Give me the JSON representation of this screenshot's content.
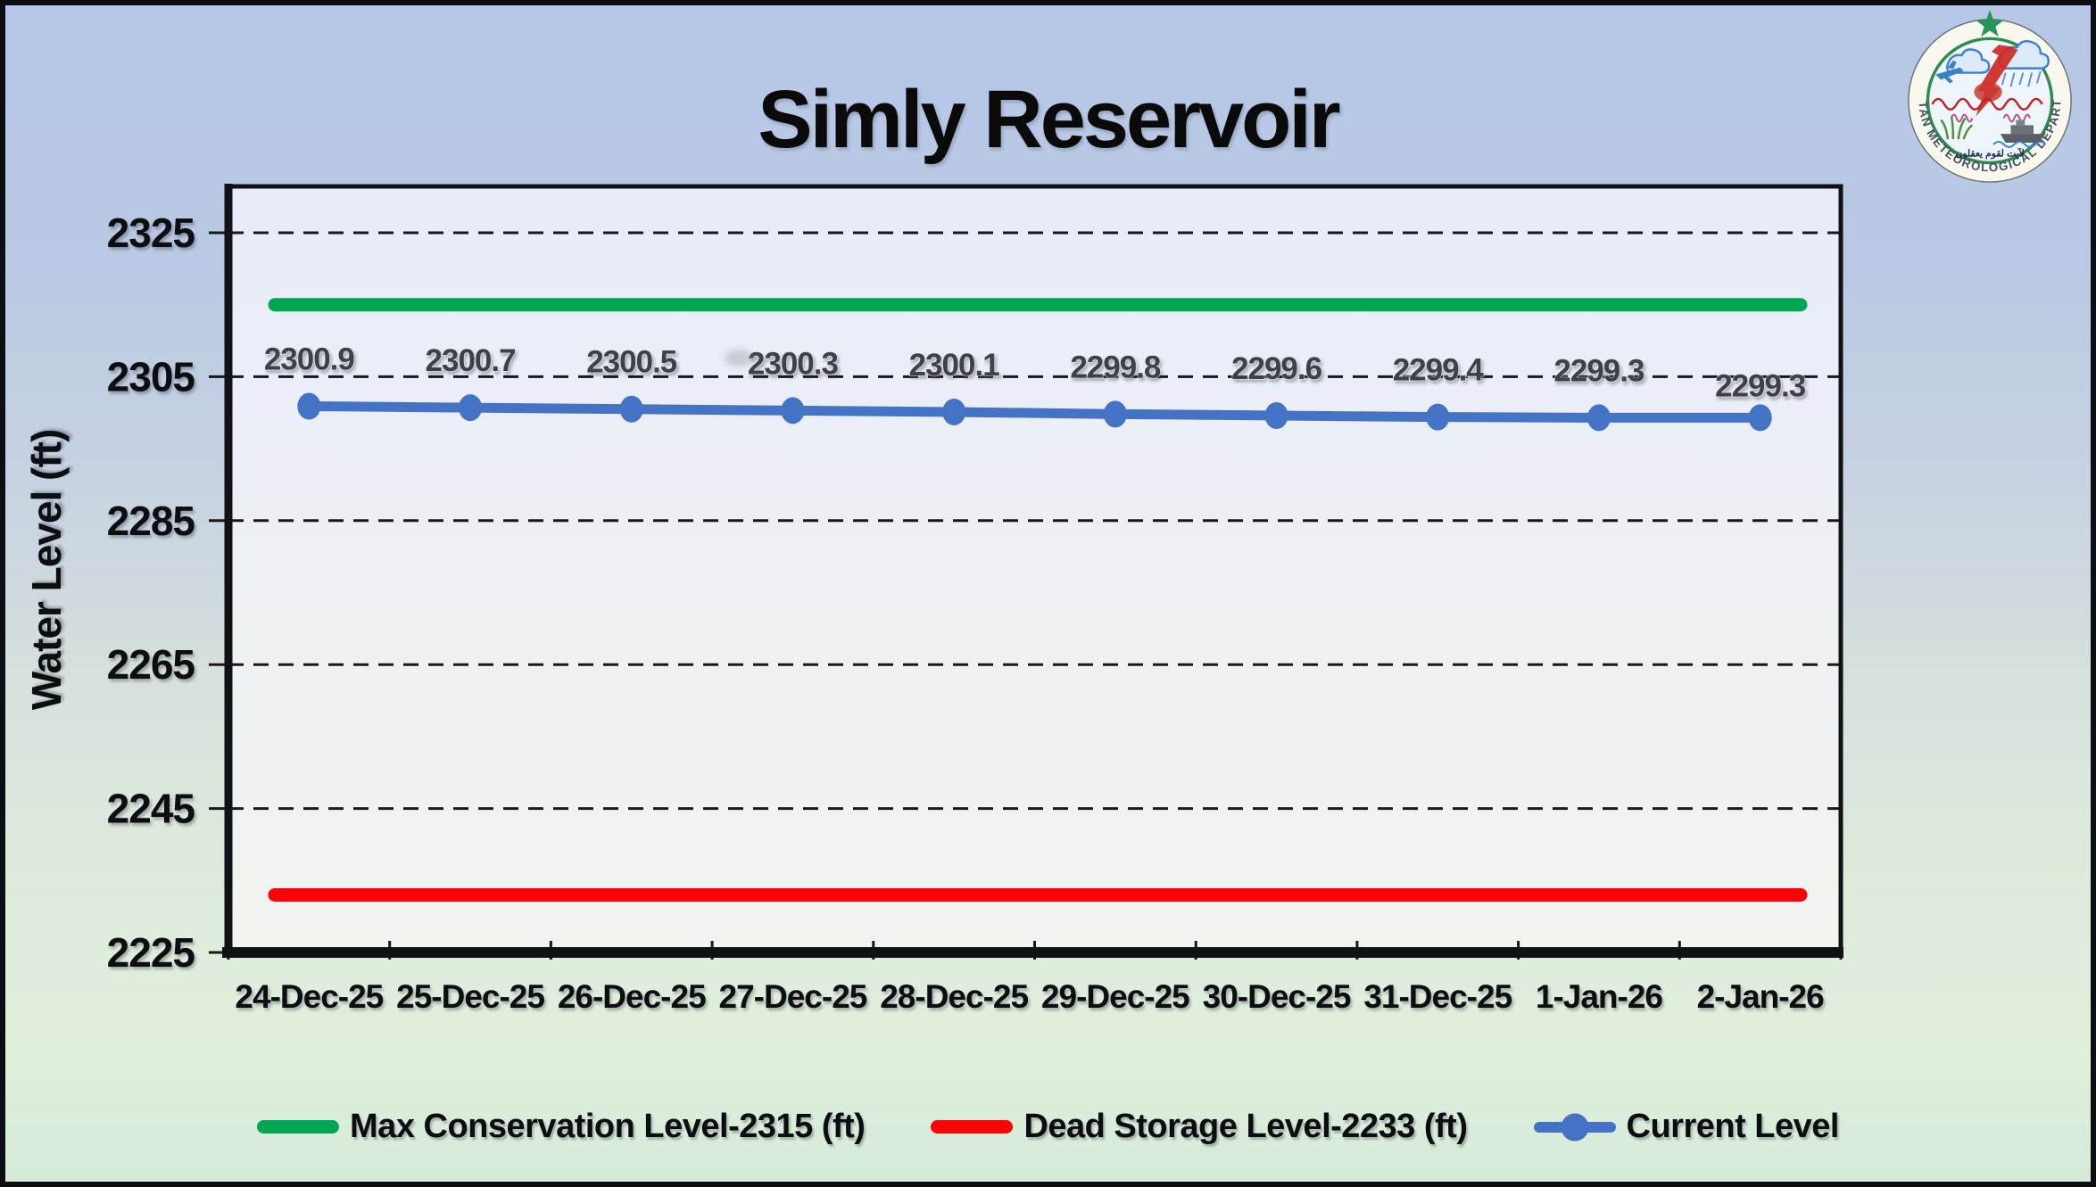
{
  "page": {
    "title": "Simly Reservoir"
  },
  "logo": {
    "name": "pakistan-meteorological-department-seal",
    "ring_text": "PAKISTAN METEOROLOGICAL DEPARTMENT",
    "center_text": "لآيت لقوم يعقلون",
    "star_color": "#23975a",
    "ring_color": "#2e8b4f",
    "text_color": "#44505e"
  },
  "chart_data": {
    "type": "line",
    "title": "Simly Reservoir",
    "xlabel": "",
    "ylabel": "Water Level (ft)",
    "categories": [
      "24-Dec-25",
      "25-Dec-25",
      "26-Dec-25",
      "27-Dec-25",
      "28-Dec-25",
      "29-Dec-25",
      "30-Dec-25",
      "31-Dec-25",
      "1-Jan-26",
      "2-Jan-26"
    ],
    "series": [
      {
        "name": "Max Conservation Level-2315 (ft)",
        "type": "reference-line",
        "value": 2315,
        "color": "#00a651"
      },
      {
        "name": "Dead Storage Level-2233 (ft)",
        "type": "reference-line",
        "value": 2233,
        "color": "#fa0505"
      },
      {
        "name": "Current Level",
        "type": "line-markers",
        "color": "#4472c4",
        "values": [
          2300.9,
          2300.7,
          2300.5,
          2300.3,
          2300.1,
          2299.8,
          2299.6,
          2299.4,
          2299.3,
          2299.3
        ]
      }
    ],
    "data_labels": [
      "2300.9",
      "2300.7",
      "2300.5",
      "2300.3",
      "2300.1",
      "2299.8",
      "2299.6",
      "2299.4",
      "2299.3",
      "2299.3"
    ],
    "yticks": [
      2225,
      2245,
      2265,
      2285,
      2305,
      2325
    ],
    "ylim": [
      2225,
      2331
    ],
    "grid": "horizontal-dashed-black",
    "legend_position": "bottom",
    "plot_background": "#e9edf7",
    "axis_text_color": "#0c0e12",
    "data_label_color": "#3d4247"
  }
}
